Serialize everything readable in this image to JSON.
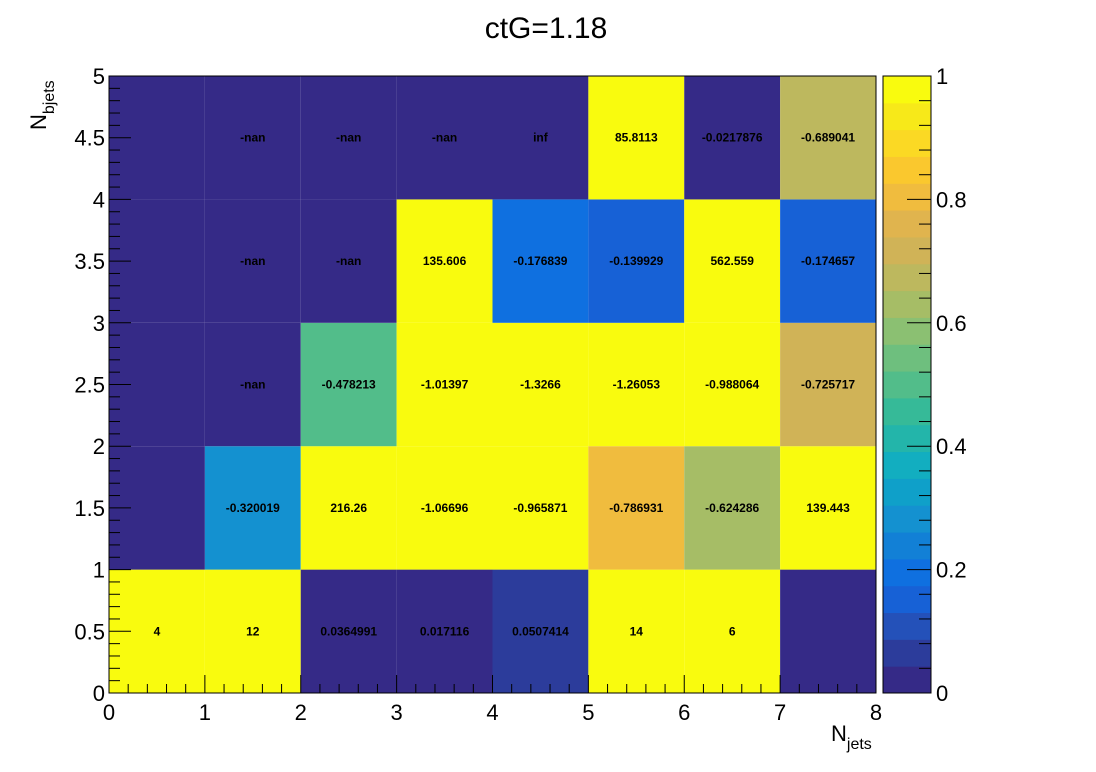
{
  "chart_data": {
    "type": "heatmap",
    "title": "ctG=1.18",
    "xlabel": {
      "main": "N",
      "sub": "jets"
    },
    "ylabel": {
      "main": "N",
      "sub": "bjets"
    },
    "x_edges": [
      0,
      1,
      2,
      3,
      4,
      5,
      6,
      7,
      8
    ],
    "y_edges": [
      0,
      1,
      2,
      3,
      4,
      5
    ],
    "xlim": [
      0,
      8
    ],
    "ylim": [
      0,
      5
    ],
    "zlim": [
      0,
      1
    ],
    "x_ticks": [
      "0",
      "1",
      "2",
      "3",
      "4",
      "5",
      "6",
      "7",
      "8"
    ],
    "y_ticks": [
      "0",
      "0.5",
      "1",
      "1.5",
      "2",
      "2.5",
      "3",
      "3.5",
      "4",
      "4.5",
      "5"
    ],
    "z_ticks": [
      "0",
      "0.2",
      "0.4",
      "0.6",
      "0.8",
      "1"
    ],
    "palette": [
      "#352a87",
      "#2c3c9b",
      "#2451b9",
      "#1761d6",
      "#0f70e0",
      "#1280d6",
      "#1491d0",
      "#0fa0c9",
      "#12aec0",
      "#23b5aa",
      "#36ba98",
      "#52bd8a",
      "#6ebf7e",
      "#8bc072",
      "#a6bd66",
      "#bdb85e",
      "#d0b357",
      "#e0b44e",
      "#f0bc3e",
      "#fac82e",
      "#fbd924",
      "#f7e919",
      "#f9fb0e"
    ],
    "cells": [
      {
        "x": 0,
        "y": 0,
        "z": 1.0,
        "label": "4"
      },
      {
        "x": 1,
        "y": 0,
        "z": 1.0,
        "label": "12"
      },
      {
        "x": 2,
        "y": 0,
        "z": 0.0365,
        "label": "0.0364991"
      },
      {
        "x": 3,
        "y": 0,
        "z": 0.0171,
        "label": "0.017116"
      },
      {
        "x": 4,
        "y": 0,
        "z": 0.0507,
        "label": "0.0507414"
      },
      {
        "x": 5,
        "y": 0,
        "z": 1.0,
        "label": "14"
      },
      {
        "x": 6,
        "y": 0,
        "z": 1.0,
        "label": "6"
      },
      {
        "x": 7,
        "y": 0,
        "z": 0.0,
        "label": ""
      },
      {
        "x": 0,
        "y": 1,
        "z": 0.0,
        "label": ""
      },
      {
        "x": 1,
        "y": 1,
        "z": 0.3,
        "label": "-0.320019"
      },
      {
        "x": 2,
        "y": 1,
        "z": 1.0,
        "label": "216.26"
      },
      {
        "x": 3,
        "y": 1,
        "z": 1.0,
        "label": "-1.06696"
      },
      {
        "x": 4,
        "y": 1,
        "z": 1.0,
        "label": "-0.965871"
      },
      {
        "x": 5,
        "y": 1,
        "z": 0.79,
        "label": "-0.786931"
      },
      {
        "x": 6,
        "y": 1,
        "z": 0.62,
        "label": "-0.624286"
      },
      {
        "x": 7,
        "y": 1,
        "z": 1.0,
        "label": "139.443"
      },
      {
        "x": 0,
        "y": 2,
        "z": 0.0,
        "label": ""
      },
      {
        "x": 1,
        "y": 2,
        "z": -0.1,
        "label": "-nan"
      },
      {
        "x": 2,
        "y": 2,
        "z": 0.48,
        "label": "-0.478213"
      },
      {
        "x": 3,
        "y": 2,
        "z": 1.0,
        "label": "-1.01397"
      },
      {
        "x": 4,
        "y": 2,
        "z": 1.0,
        "label": "-1.3266"
      },
      {
        "x": 5,
        "y": 2,
        "z": 1.0,
        "label": "-1.26053"
      },
      {
        "x": 6,
        "y": 2,
        "z": 1.0,
        "label": "-0.988064"
      },
      {
        "x": 7,
        "y": 2,
        "z": 0.73,
        "label": "-0.725717"
      },
      {
        "x": 0,
        "y": 3,
        "z": 0.0,
        "label": ""
      },
      {
        "x": 1,
        "y": 3,
        "z": -0.1,
        "label": "-nan"
      },
      {
        "x": 2,
        "y": 3,
        "z": -0.1,
        "label": "-nan"
      },
      {
        "x": 3,
        "y": 3,
        "z": 1.0,
        "label": "135.606"
      },
      {
        "x": 4,
        "y": 3,
        "z": 0.18,
        "label": "-0.176839"
      },
      {
        "x": 5,
        "y": 3,
        "z": 0.14,
        "label": "-0.139929"
      },
      {
        "x": 6,
        "y": 3,
        "z": 1.0,
        "label": "562.559"
      },
      {
        "x": 7,
        "y": 3,
        "z": 0.17,
        "label": "-0.174657"
      },
      {
        "x": 0,
        "y": 4,
        "z": 0.0,
        "label": ""
      },
      {
        "x": 1,
        "y": 4,
        "z": -0.1,
        "label": "-nan"
      },
      {
        "x": 2,
        "y": 4,
        "z": -0.1,
        "label": "-nan"
      },
      {
        "x": 3,
        "y": 4,
        "z": -0.1,
        "label": "-nan"
      },
      {
        "x": 4,
        "y": 4,
        "z": -0.1,
        "label": "inf"
      },
      {
        "x": 5,
        "y": 4,
        "z": 1.0,
        "label": "85.8113"
      },
      {
        "x": 6,
        "y": 4,
        "z": 0.02,
        "label": "-0.0217876"
      },
      {
        "x": 7,
        "y": 4,
        "z": 0.69,
        "label": "-0.689041"
      }
    ]
  }
}
